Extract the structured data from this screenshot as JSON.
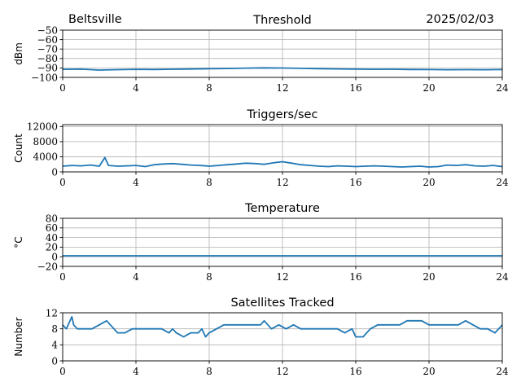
{
  "header": {
    "location": "Beltsville",
    "date": "2025/02/03"
  },
  "colors": {
    "series": "#1f77b4",
    "grid": "#b0b0b0",
    "axis": "#000000"
  },
  "chart_data": [
    {
      "type": "line",
      "title": "Threshold",
      "ylabel": "dBm",
      "xlim": [
        0,
        24
      ],
      "ylim": [
        -100,
        -50
      ],
      "xticks": [
        0,
        4,
        8,
        12,
        16,
        20,
        24
      ],
      "yticks": [
        -100,
        -90,
        -80,
        -70,
        -60,
        -50
      ],
      "ytick_labels": [
        "−100",
        "−90",
        "−80",
        "−70",
        "−60",
        "−50"
      ],
      "xtick_labels": [
        "0",
        "4",
        "8",
        "12",
        "16",
        "20",
        "24"
      ],
      "grid": true,
      "series": [
        {
          "x": [
            0,
            1,
            2,
            3,
            4,
            5,
            6,
            7,
            8,
            9,
            10,
            11,
            12,
            13,
            14,
            15,
            16,
            17,
            18,
            19,
            20,
            21,
            22,
            23,
            24
          ],
          "y": [
            -91.5,
            -91.3,
            -92.2,
            -91.8,
            -91.5,
            -91.6,
            -91.4,
            -91.1,
            -90.9,
            -90.6,
            -90.2,
            -89.9,
            -90.1,
            -90.4,
            -90.8,
            -91.0,
            -91.3,
            -91.5,
            -91.4,
            -91.6,
            -91.7,
            -91.9,
            -91.8,
            -91.9,
            -91.7
          ]
        }
      ]
    },
    {
      "type": "line",
      "title": "Triggers/sec",
      "ylabel": "Count",
      "xlim": [
        0,
        24
      ],
      "ylim": [
        0,
        12500
      ],
      "xticks": [
        0,
        4,
        8,
        12,
        16,
        20,
        24
      ],
      "yticks": [
        0,
        4000,
        8000,
        12000
      ],
      "ytick_labels": [
        "0",
        "4000",
        "8000",
        "12000"
      ],
      "xtick_labels": [
        "0",
        "4",
        "8",
        "12",
        "16",
        "20",
        "24"
      ],
      "grid": true,
      "series": [
        {
          "x": [
            0,
            0.5,
            1,
            1.5,
            2,
            2.3,
            2.5,
            3,
            3.5,
            4,
            4.5,
            5,
            5.5,
            6,
            6.5,
            7,
            7.5,
            8,
            8.5,
            9,
            9.5,
            10,
            10.5,
            11,
            11.5,
            12,
            12.5,
            13,
            13.5,
            14,
            14.5,
            15,
            15.5,
            16,
            16.5,
            17,
            17.5,
            18,
            18.5,
            19,
            19.5,
            20,
            20.5,
            21,
            21.5,
            22,
            22.5,
            23,
            23.5,
            24
          ],
          "y": [
            1500,
            1700,
            1600,
            1800,
            1500,
            3800,
            1700,
            1500,
            1600,
            1700,
            1400,
            1900,
            2100,
            2200,
            2000,
            1800,
            1700,
            1500,
            1700,
            1900,
            2100,
            2300,
            2200,
            2000,
            2400,
            2700,
            2300,
            1900,
            1700,
            1500,
            1400,
            1600,
            1500,
            1400,
            1500,
            1600,
            1500,
            1400,
            1300,
            1400,
            1500,
            1300,
            1400,
            1800,
            1700,
            1900,
            1600,
            1500,
            1700,
            1400
          ]
        }
      ]
    },
    {
      "type": "line",
      "title": "Temperature",
      "ylabel": "°C",
      "xlim": [
        0,
        24
      ],
      "ylim": [
        -20,
        80
      ],
      "xticks": [
        0,
        4,
        8,
        12,
        16,
        20,
        24
      ],
      "yticks": [
        -20,
        0,
        20,
        40,
        60,
        80
      ],
      "ytick_labels": [
        "−20",
        "0",
        "20",
        "40",
        "60",
        "80"
      ],
      "xtick_labels": [
        "0",
        "4",
        "8",
        "12",
        "16",
        "20",
        "24"
      ],
      "grid": true,
      "series": [
        {
          "x": [
            0,
            4,
            8,
            12,
            16,
            20,
            24
          ],
          "y": [
            2,
            2,
            2,
            2,
            2,
            2,
            2
          ]
        }
      ]
    },
    {
      "type": "line",
      "title": "Satellites Tracked",
      "ylabel": "Number",
      "xlim": [
        0,
        24
      ],
      "ylim": [
        0,
        12
      ],
      "xticks": [
        0,
        4,
        8,
        12,
        16,
        20,
        24
      ],
      "yticks": [
        0,
        4,
        8,
        12
      ],
      "ytick_labels": [
        "0",
        "4",
        "8",
        "12"
      ],
      "xtick_labels": [
        "0",
        "4",
        "8",
        "12",
        "16",
        "20",
        "24"
      ],
      "grid": true,
      "series": [
        {
          "x": [
            0,
            0.2,
            0.4,
            0.5,
            0.6,
            0.8,
            1.2,
            1.6,
            2.0,
            2.4,
            2.6,
            2.8,
            3.0,
            3.4,
            3.8,
            4.2,
            4.6,
            5.0,
            5.4,
            5.8,
            6.0,
            6.2,
            6.6,
            7.0,
            7.4,
            7.6,
            7.8,
            8.0,
            8.4,
            8.8,
            9.2,
            9.6,
            10.0,
            10.4,
            10.8,
            11.0,
            11.4,
            11.8,
            12.2,
            12.6,
            13.0,
            13.4,
            13.8,
            14.2,
            14.6,
            15.0,
            15.4,
            15.8,
            16.0,
            16.4,
            16.8,
            17.2,
            17.6,
            18.0,
            18.4,
            18.8,
            19.2,
            19.6,
            20.0,
            20.4,
            20.8,
            21.2,
            21.6,
            22.0,
            22.4,
            22.8,
            23.2,
            23.6,
            24.0
          ],
          "y": [
            9,
            8,
            10,
            11,
            9,
            8,
            8,
            8,
            9,
            10,
            9,
            8,
            7,
            7,
            8,
            8,
            8,
            8,
            8,
            7,
            8,
            7,
            6,
            7,
            7,
            8,
            6,
            7,
            8,
            9,
            9,
            9,
            9,
            9,
            9,
            10,
            8,
            9,
            8,
            9,
            8,
            8,
            8,
            8,
            8,
            8,
            7,
            8,
            6,
            6,
            8,
            9,
            9,
            9,
            9,
            10,
            10,
            10,
            9,
            9,
            9,
            9,
            9,
            10,
            9,
            8,
            8,
            7,
            9
          ]
        }
      ]
    }
  ]
}
